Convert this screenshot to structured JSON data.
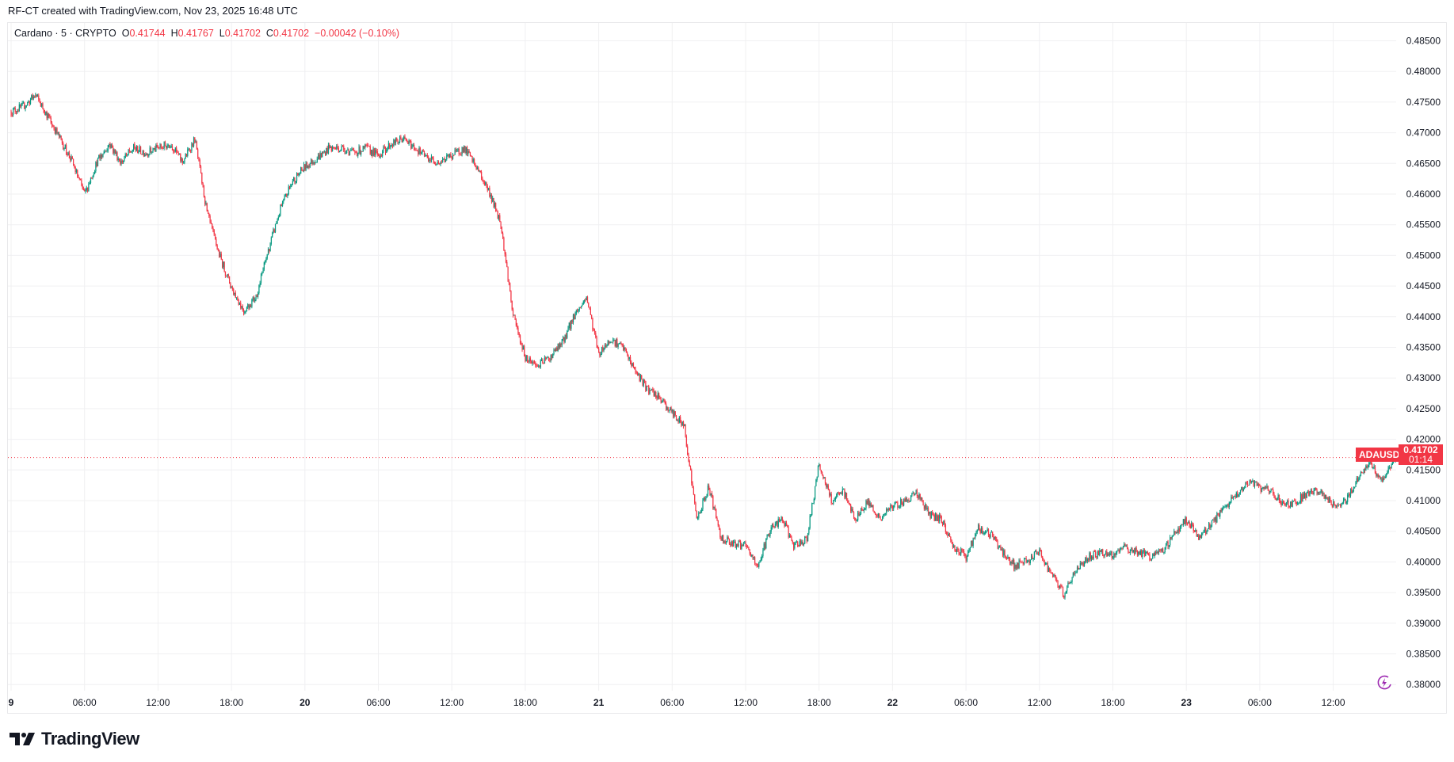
{
  "header": {
    "attribution": "RF-CT created with TradingView.com, Nov 23, 2025 16:48 UTC"
  },
  "legend": {
    "symbol": "Cardano · 5 · CRYPTO",
    "open_label": "O",
    "open": "0.41744",
    "high_label": "H",
    "high": "0.41767",
    "low_label": "L",
    "low": "0.41702",
    "close_label": "C",
    "close": "0.41702",
    "change": "−0.00042 (−0.10%)"
  },
  "price_tag": {
    "symbol": "ADAUSD",
    "price": "0.41702",
    "countdown": "01:14"
  },
  "logo": {
    "text": "TradingView"
  },
  "icons": {
    "alert": "lightning-bolt-icon",
    "logo": "tradingview-logo-icon"
  },
  "colors": {
    "up": "#089981",
    "down": "#f23645",
    "grid": "#f0f0f2",
    "price_line": "#f23645",
    "alert_icon": "#9c27b0"
  },
  "chart_data": {
    "type": "candlestick",
    "symbol": "ADAUSD",
    "interval": "5 minutes",
    "ylim": [
      0.378,
      0.4875
    ],
    "grid": true,
    "y_ticks": [
      "0.48500",
      "0.48000",
      "0.47500",
      "0.47000",
      "0.46500",
      "0.46000",
      "0.45500",
      "0.45000",
      "0.44500",
      "0.44000",
      "0.43500",
      "0.43000",
      "0.42500",
      "0.42000",
      "0.41500",
      "0.41000",
      "0.40500",
      "0.40000",
      "0.39500",
      "0.39000",
      "0.38500",
      "0.38000"
    ],
    "x_ticks": [
      "9",
      "06:00",
      "12:00",
      "18:00",
      "20",
      "06:00",
      "12:00",
      "18:00",
      "21",
      "06:00",
      "12:00",
      "18:00",
      "22",
      "06:00",
      "12:00",
      "18:00",
      "23",
      "06:00",
      "12:00"
    ],
    "current_price": 0.41702,
    "hourly_close_approx": [
      0.4735,
      0.4743,
      0.4761,
      0.4727,
      0.469,
      0.4652,
      0.4599,
      0.4652,
      0.4682,
      0.4652,
      0.4675,
      0.4667,
      0.4675,
      0.4682,
      0.4652,
      0.469,
      0.4569,
      0.4501,
      0.4447,
      0.441,
      0.4432,
      0.4508,
      0.4576,
      0.4622,
      0.4644,
      0.4659,
      0.4675,
      0.4675,
      0.4667,
      0.4675,
      0.4663,
      0.4682,
      0.469,
      0.4675,
      0.4659,
      0.4652,
      0.4663,
      0.4675,
      0.4644,
      0.4606,
      0.4553,
      0.4402,
      0.4334,
      0.4319,
      0.4334,
      0.4357,
      0.4402,
      0.4432,
      0.4341,
      0.4364,
      0.4349,
      0.4311,
      0.4281,
      0.4266,
      0.4243,
      0.422,
      0.4069,
      0.4122,
      0.4039,
      0.4031,
      0.4024,
      0.3993,
      0.4054,
      0.4069,
      0.4024,
      0.4039,
      0.416,
      0.4099,
      0.4114,
      0.4069,
      0.4099,
      0.4069,
      0.4092,
      0.4099,
      0.4114,
      0.4077,
      0.4069,
      0.4024,
      0.4009,
      0.4054,
      0.4046,
      0.4016,
      0.3993,
      0.4001,
      0.4016,
      0.3978,
      0.3948,
      0.3986,
      0.4009,
      0.4016,
      0.4009,
      0.4024,
      0.4016,
      0.4009,
      0.4016,
      0.4046,
      0.4069,
      0.4039,
      0.4062,
      0.4084,
      0.4107,
      0.413,
      0.4122,
      0.4114,
      0.4092,
      0.4099,
      0.4114,
      0.4114,
      0.4092,
      0.4099,
      0.4137,
      0.416,
      0.413,
      0.41702
    ],
    "notable_extremes": {
      "high": 0.477,
      "low": 0.388
    }
  }
}
